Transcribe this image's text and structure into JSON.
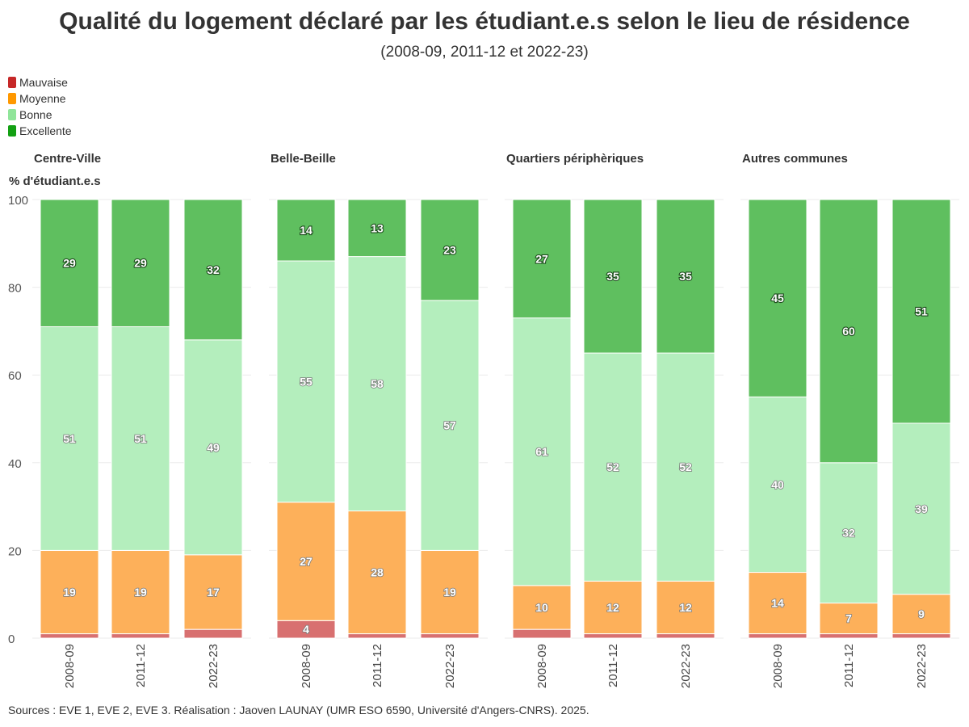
{
  "title": "Qualité du logement déclaré par les étudiant.e.s selon le lieu de résidence",
  "subtitle": "(2008-09, 2011-12 et 2022-23)",
  "source": "Sources : EVE 1, EVE 2, EVE 3. Réalisation : Jaoven LAUNAY (UMR ESO 6590, Université d'Angers-CNRS). 2025.",
  "chart_data": {
    "type": "bar",
    "stacked": true,
    "ylabel": "% d'étudiant.e.s",
    "ylim": [
      0,
      100
    ],
    "yticks": [
      0,
      20,
      40,
      60,
      80,
      100
    ],
    "grid": true,
    "legend": {
      "position": "top-left",
      "entries": [
        {
          "name": "Mauvaise",
          "color": "#c62828"
        },
        {
          "name": "Moyenne",
          "color": "#ff9800"
        },
        {
          "name": "Bonne",
          "color": "#90e59a"
        },
        {
          "name": "Excellente",
          "color": "#13a013"
        }
      ]
    },
    "series_colors": {
      "Mauvaise": "#d87070",
      "Moyenne": "#fdb05a",
      "Bonne": "#b4eebd",
      "Excellente": "#5fbf5f"
    },
    "panels": [
      {
        "name": "Centre-Ville",
        "categories": [
          "2008-09",
          "2011-12",
          "2022-23"
        ],
        "series": [
          {
            "name": "Mauvaise",
            "values": [
              1,
              1,
              2
            ],
            "labels": [
              "",
              "",
              ""
            ]
          },
          {
            "name": "Moyenne",
            "values": [
              19,
              19,
              17
            ],
            "labels": [
              "19",
              "19",
              "17"
            ]
          },
          {
            "name": "Bonne",
            "values": [
              51,
              51,
              49
            ],
            "labels": [
              "51",
              "51",
              "49"
            ]
          },
          {
            "name": "Excellente",
            "values": [
              29,
              29,
              32
            ],
            "labels": [
              "29",
              "29",
              "32"
            ]
          }
        ]
      },
      {
        "name": "Belle-Beille",
        "categories": [
          "2008-09",
          "2011-12",
          "2022-23"
        ],
        "series": [
          {
            "name": "Mauvaise",
            "values": [
              4,
              1,
              1
            ],
            "labels": [
              "4",
              "",
              ""
            ]
          },
          {
            "name": "Moyenne",
            "values": [
              27,
              28,
              19
            ],
            "labels": [
              "27",
              "28",
              "19"
            ]
          },
          {
            "name": "Bonne",
            "values": [
              55,
              58,
              57
            ],
            "labels": [
              "55",
              "58",
              "57"
            ]
          },
          {
            "name": "Excellente",
            "values": [
              14,
              13,
              23
            ],
            "labels": [
              "14",
              "13",
              "23"
            ]
          }
        ]
      },
      {
        "name": "Quartiers périphèriques",
        "categories": [
          "2008-09",
          "2011-12",
          "2022-23"
        ],
        "series": [
          {
            "name": "Mauvaise",
            "values": [
              2,
              1,
              1
            ],
            "labels": [
              "",
              "",
              ""
            ]
          },
          {
            "name": "Moyenne",
            "values": [
              10,
              12,
              12
            ],
            "labels": [
              "10",
              "12",
              "12"
            ]
          },
          {
            "name": "Bonne",
            "values": [
              61,
              52,
              52
            ],
            "labels": [
              "61",
              "52",
              "52"
            ]
          },
          {
            "name": "Excellente",
            "values": [
              27,
              35,
              35
            ],
            "labels": [
              "27",
              "35",
              "35"
            ]
          }
        ]
      },
      {
        "name": "Autres communes",
        "categories": [
          "2008-09",
          "2011-12",
          "2022-23"
        ],
        "series": [
          {
            "name": "Mauvaise",
            "values": [
              1,
              1,
              1
            ],
            "labels": [
              "",
              "",
              ""
            ]
          },
          {
            "name": "Moyenne",
            "values": [
              14,
              7,
              9
            ],
            "labels": [
              "14",
              "7",
              "9"
            ]
          },
          {
            "name": "Bonne",
            "values": [
              40,
              32,
              39
            ],
            "labels": [
              "40",
              "32",
              "39"
            ]
          },
          {
            "name": "Excellente",
            "values": [
              45,
              60,
              51
            ],
            "labels": [
              "45",
              "60",
              "51"
            ]
          }
        ]
      }
    ]
  }
}
